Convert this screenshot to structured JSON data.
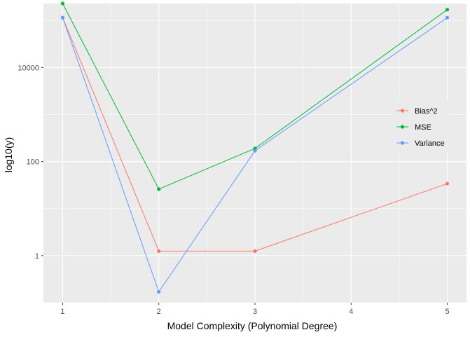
{
  "chart_data": {
    "type": "line",
    "xlabel": "Model Complexity (Polynomial Degree)",
    "ylabel": "log10(y)",
    "x": [
      1,
      2,
      3,
      4,
      5
    ],
    "x_ticks": [
      "1",
      "2",
      "3",
      "4",
      "5"
    ],
    "y_scale": "log10",
    "y_ticks": [
      1,
      100,
      10000
    ],
    "y_tick_labels": [
      "1",
      "100",
      "10000"
    ],
    "ylim": [
      0.1,
      230000
    ],
    "grid": true,
    "legend_position": "right",
    "series": [
      {
        "name": "Bias^2",
        "color": "#F8766D",
        "points": [
          [
            1,
            115000
          ],
          [
            2,
            1.25
          ],
          [
            3,
            1.25
          ],
          [
            5,
            34
          ]
        ]
      },
      {
        "name": "MSE",
        "color": "#00BA38",
        "points": [
          [
            1,
            230000
          ],
          [
            2,
            26
          ],
          [
            3,
            190
          ],
          [
            5,
            170000
          ]
        ]
      },
      {
        "name": "Variance",
        "color": "#619CFF",
        "points": [
          [
            1,
            115000
          ],
          [
            2,
            0.17
          ],
          [
            3,
            170
          ],
          [
            5,
            115000
          ]
        ]
      }
    ]
  }
}
